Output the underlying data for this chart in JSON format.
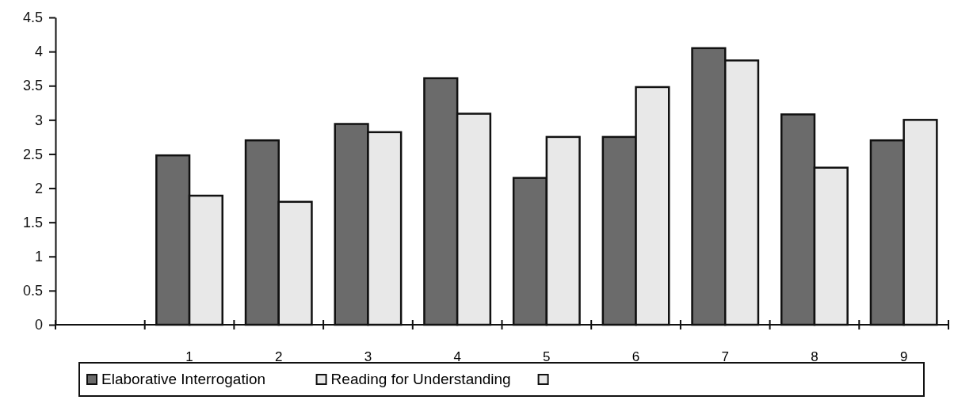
{
  "chart_data": {
    "type": "bar",
    "categories": [
      null,
      "1",
      "2",
      "3",
      "4",
      "5",
      "6",
      "7",
      "8",
      "9"
    ],
    "series": [
      {
        "name": "Elaborative  Interrogation",
        "color": "#6b6b6b",
        "values": [
          null,
          2.48,
          2.7,
          2.94,
          3.61,
          2.15,
          2.75,
          4.05,
          3.08,
          2.7
        ]
      },
      {
        "name": "Reading for Understanding",
        "color": "#e8e8e8",
        "values": [
          null,
          1.89,
          1.8,
          2.82,
          3.09,
          2.75,
          3.48,
          3.87,
          2.3,
          3.0
        ]
      }
    ],
    "ylim": [
      0,
      4.5
    ],
    "yticks": [
      0,
      0.5,
      1,
      1.5,
      2,
      2.5,
      3,
      3.5,
      4,
      4.5
    ],
    "grid": false,
    "legend": "bottom"
  }
}
